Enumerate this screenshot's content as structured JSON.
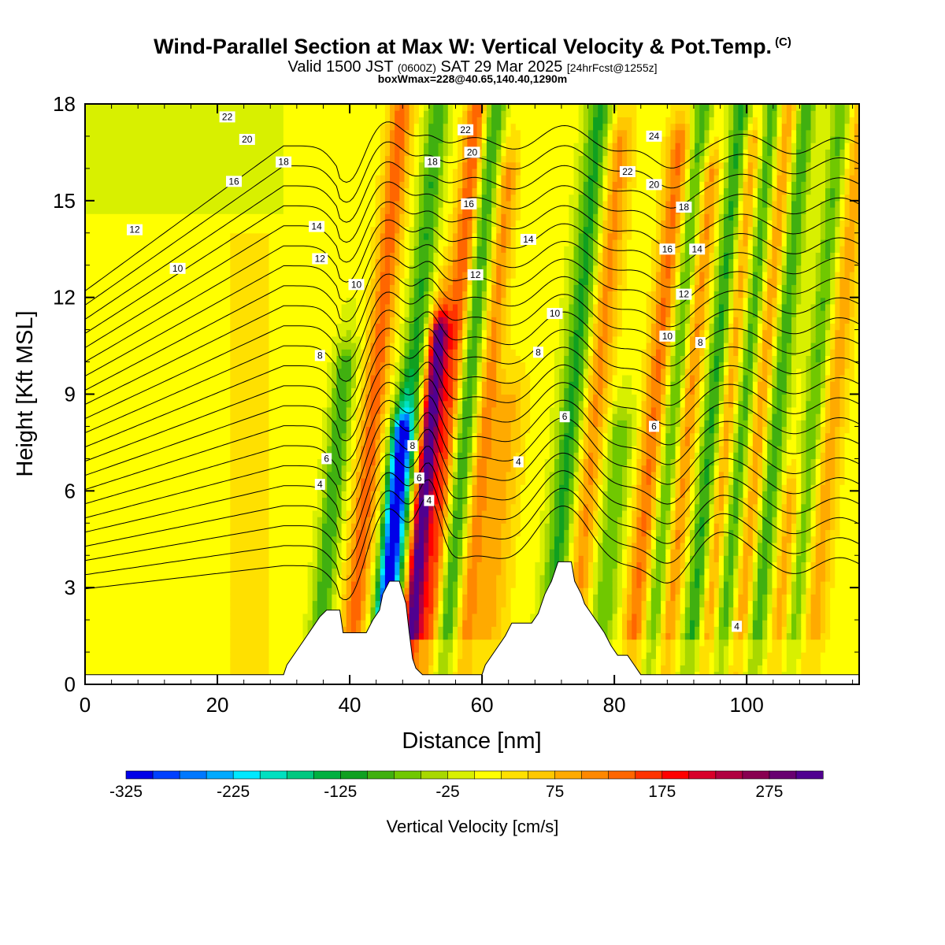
{
  "header": {
    "title": "Wind-Parallel Section at Max W: Vertical Velocity & Pot.Temp.",
    "copyright_mark": "(C)",
    "valid_prefix": "Valid 1500 JST",
    "valid_z": "(0600Z)",
    "valid_date": "SAT 29 Mar 2025",
    "forecast": "[24hrFcst@1255z]",
    "box_info": "boxWmax=228@40.65,140.40,1290m"
  },
  "colors": {
    "background": "#d8f000",
    "plot_frame": "#000000",
    "terrain_fill": "#ffffff",
    "contour_line": "#000000"
  },
  "chart_data": {
    "type": "heatmap",
    "title": "Wind-Parallel Section at Max W: Vertical Velocity & Pot.Temp.",
    "xlabel": "Distance [nm]",
    "ylabel": "Height [Kft MSL]",
    "xlim": [
      0,
      117
    ],
    "ylim": [
      0,
      18
    ],
    "x_ticks": [
      "0",
      "20",
      "40",
      "60",
      "80",
      "100"
    ],
    "y_ticks": [
      "0",
      "3",
      "6",
      "9",
      "12",
      "15",
      "18"
    ],
    "x_tick_values": [
      0,
      20,
      40,
      60,
      80,
      100
    ],
    "y_tick_values": [
      0,
      3,
      6,
      9,
      12,
      15,
      18
    ],
    "field": "Vertical Velocity",
    "colorbar": {
      "title": "Vertical Velocity [cm/s]",
      "labels": [
        "-325",
        "-225",
        "-125",
        "-25",
        "75",
        "175",
        "275"
      ],
      "label_values": [
        -325,
        -225,
        -125,
        -25,
        75,
        175,
        275
      ],
      "min": -325,
      "max": 325,
      "colors": [
        "#0000e8",
        "#0040ff",
        "#0078ff",
        "#00aaff",
        "#00e8ff",
        "#00e0c0",
        "#00c880",
        "#00b040",
        "#10a020",
        "#40b010",
        "#70c800",
        "#a8d800",
        "#d8f000",
        "#ffff00",
        "#ffe000",
        "#ffc800",
        "#ffaa00",
        "#ff8800",
        "#ff6600",
        "#ff3300",
        "#ff0000",
        "#d8002a",
        "#b00040",
        "#880050",
        "#680070",
        "#500090"
      ]
    },
    "updraft_bands": [
      {
        "x": 42.5,
        "w": 1.8,
        "top": 18,
        "amp": 130
      },
      {
        "x": 51.3,
        "w": 1.4,
        "top": 11,
        "amp": 310
      },
      {
        "x": 54.0,
        "w": 1.7,
        "top": 18,
        "amp": 150
      },
      {
        "x": 59.5,
        "w": 1.6,
        "top": 16,
        "amp": 100
      },
      {
        "x": 63.0,
        "w": 2.5,
        "top": 9,
        "amp": 70
      },
      {
        "x": 76.0,
        "w": 2.0,
        "top": 17,
        "amp": 100
      },
      {
        "x": 85.0,
        "w": 1.8,
        "top": 17,
        "amp": 120
      },
      {
        "x": 90.0,
        "w": 1.6,
        "top": 16,
        "amp": 110
      },
      {
        "x": 96.0,
        "w": 1.6,
        "top": 17,
        "amp": 110
      },
      {
        "x": 101.0,
        "w": 1.6,
        "top": 18,
        "amp": 100
      },
      {
        "x": 107.0,
        "w": 1.6,
        "top": 6,
        "amp": 90
      },
      {
        "x": 112.0,
        "w": 1.8,
        "top": 18,
        "amp": 80
      }
    ],
    "downdraft_bands": [
      {
        "x": 37.5,
        "w": 1.6,
        "top": 10,
        "amp": -110
      },
      {
        "x": 47.0,
        "w": 1.6,
        "top": 8,
        "amp": -270
      },
      {
        "x": 48.0,
        "w": 1.7,
        "top": 18,
        "amp": -110
      },
      {
        "x": 56.5,
        "w": 1.8,
        "top": 18,
        "amp": -120
      },
      {
        "x": 72.5,
        "w": 2.0,
        "top": 18,
        "amp": -120
      },
      {
        "x": 80.0,
        "w": 2.2,
        "top": 8,
        "amp": -80
      },
      {
        "x": 88.0,
        "w": 1.6,
        "top": 18,
        "amp": -110
      },
      {
        "x": 94.0,
        "w": 1.7,
        "top": 18,
        "amp": -130
      },
      {
        "x": 98.5,
        "w": 1.6,
        "top": 18,
        "amp": -110
      },
      {
        "x": 103.5,
        "w": 1.6,
        "top": 18,
        "amp": -110
      },
      {
        "x": 109.0,
        "w": 1.6,
        "top": 18,
        "amp": -90
      }
    ],
    "terrain": [
      [
        0,
        0.3
      ],
      [
        30,
        0.3
      ],
      [
        30.5,
        0.6
      ],
      [
        31.5,
        0.9
      ],
      [
        32.5,
        1.2
      ],
      [
        33.5,
        1.5
      ],
      [
        34.5,
        1.8
      ],
      [
        35.5,
        2.1
      ],
      [
        36.5,
        2.3
      ],
      [
        38.5,
        2.3
      ],
      [
        39.0,
        1.6
      ],
      [
        42.5,
        1.6
      ],
      [
        43.5,
        2.0
      ],
      [
        44.5,
        2.3
      ],
      [
        45.0,
        2.8
      ],
      [
        46.0,
        3.2
      ],
      [
        47.5,
        3.2
      ],
      [
        48.5,
        2.5
      ],
      [
        49.0,
        1.6
      ],
      [
        49.5,
        0.8
      ],
      [
        50.0,
        0.5
      ],
      [
        51.0,
        0.3
      ],
      [
        60.0,
        0.3
      ],
      [
        60.5,
        0.6
      ],
      [
        61.5,
        0.9
      ],
      [
        62.5,
        1.2
      ],
      [
        63.5,
        1.5
      ],
      [
        64.5,
        1.9
      ],
      [
        67.5,
        1.9
      ],
      [
        68.5,
        2.2
      ],
      [
        69.0,
        2.5
      ],
      [
        69.5,
        2.8
      ],
      [
        70.0,
        3.0
      ],
      [
        70.5,
        3.2
      ],
      [
        71.0,
        3.5
      ],
      [
        71.5,
        3.8
      ],
      [
        73.5,
        3.8
      ],
      [
        74.0,
        3.2
      ],
      [
        75.0,
        2.8
      ],
      [
        75.5,
        2.5
      ],
      [
        76.5,
        2.2
      ],
      [
        77.5,
        1.9
      ],
      [
        78.5,
        1.6
      ],
      [
        79.5,
        1.2
      ],
      [
        80.5,
        0.9
      ],
      [
        82.0,
        0.9
      ],
      [
        83.0,
        0.6
      ],
      [
        84.0,
        0.3
      ],
      [
        117,
        0.3
      ]
    ],
    "isentropes": [
      4,
      6,
      8,
      10,
      12,
      14,
      16,
      18,
      20,
      22,
      24
    ],
    "contour_labels": [
      {
        "text": "22",
        "x": 21.5,
        "y": 17.6
      },
      {
        "text": "20",
        "x": 24.5,
        "y": 16.9
      },
      {
        "text": "18",
        "x": 30,
        "y": 16.2
      },
      {
        "text": "16",
        "x": 22.5,
        "y": 15.6
      },
      {
        "text": "12",
        "x": 7.5,
        "y": 14.1
      },
      {
        "text": "10",
        "x": 14,
        "y": 12.9
      },
      {
        "text": "14",
        "x": 35,
        "y": 14.2
      },
      {
        "text": "12",
        "x": 35.5,
        "y": 13.2
      },
      {
        "text": "10",
        "x": 41,
        "y": 12.4
      },
      {
        "text": "8",
        "x": 35.5,
        "y": 10.2
      },
      {
        "text": "6",
        "x": 36.5,
        "y": 7.0
      },
      {
        "text": "4",
        "x": 35.5,
        "y": 6.2
      },
      {
        "text": "8",
        "x": 49.5,
        "y": 7.4
      },
      {
        "text": "6",
        "x": 50.5,
        "y": 6.4
      },
      {
        "text": "4",
        "x": 52,
        "y": 5.7
      },
      {
        "text": "22",
        "x": 57.5,
        "y": 17.2
      },
      {
        "text": "20",
        "x": 58.5,
        "y": 16.5
      },
      {
        "text": "18",
        "x": 52.5,
        "y": 16.2
      },
      {
        "text": "16",
        "x": 58,
        "y": 14.9
      },
      {
        "text": "12",
        "x": 59,
        "y": 12.7
      },
      {
        "text": "14",
        "x": 67,
        "y": 13.8
      },
      {
        "text": "10",
        "x": 71,
        "y": 11.5
      },
      {
        "text": "8",
        "x": 68.5,
        "y": 10.3
      },
      {
        "text": "6",
        "x": 72.5,
        "y": 8.3
      },
      {
        "text": "4",
        "x": 65.5,
        "y": 6.9
      },
      {
        "text": "24",
        "x": 86,
        "y": 17.0
      },
      {
        "text": "22",
        "x": 82,
        "y": 15.9
      },
      {
        "text": "20",
        "x": 86,
        "y": 15.5
      },
      {
        "text": "18",
        "x": 90.5,
        "y": 14.8
      },
      {
        "text": "16",
        "x": 88,
        "y": 13.5
      },
      {
        "text": "14",
        "x": 92.5,
        "y": 13.5
      },
      {
        "text": "12",
        "x": 90.5,
        "y": 12.1
      },
      {
        "text": "10",
        "x": 88,
        "y": 10.8
      },
      {
        "text": "8",
        "x": 93,
        "y": 10.6
      },
      {
        "text": "6",
        "x": 86,
        "y": 8.0
      },
      {
        "text": "4",
        "x": 98.5,
        "y": 1.8
      }
    ]
  }
}
